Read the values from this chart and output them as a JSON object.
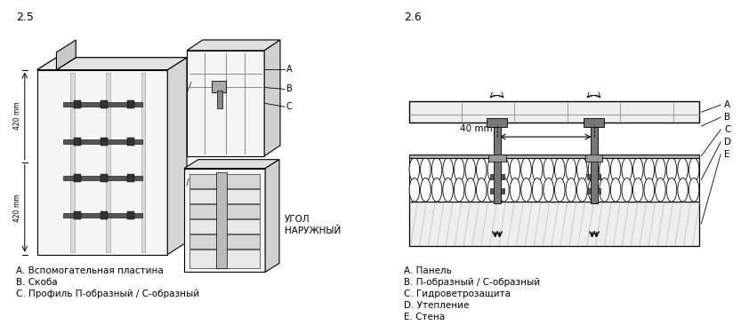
{
  "bg_color": "#ffffff",
  "line_color": "#000000",
  "gray_color": "#666666",
  "light_gray": "#cccccc",
  "label_25": "2.5",
  "label_26": "2.6",
  "legend_left": [
    "A. Вспомогательная пластина",
    "B. Скоба",
    "C. Профиль П-образный / С-образный"
  ],
  "legend_right": [
    "A. Панель",
    "B. П-образный / С-образный",
    "C. Гидроветрозащита",
    "D. Утепление",
    "E. Стена"
  ],
  "label_ugol": "УГОЛ\nНАРУЖНЫЙ",
  "dim_40mm": "40 mm",
  "dim_420_1": "420 mm",
  "dim_420_2": "420 mm",
  "abcde_labels": [
    "A",
    "B",
    "C",
    "D",
    "E"
  ]
}
